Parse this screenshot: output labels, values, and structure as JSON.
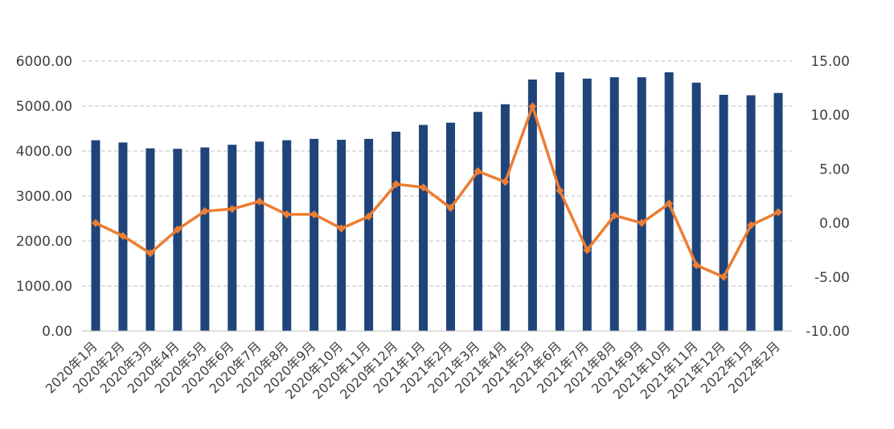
{
  "chart_data": {
    "type": "bar+line",
    "categories": [
      "2020年1月",
      "2020年2月",
      "2020年3月",
      "2020年4月",
      "2020年5月",
      "2020年6月",
      "2020年7月",
      "2020年8月",
      "2020年9月",
      "2020年10月",
      "2020年11月",
      "2020年12月",
      "2021年1月",
      "2021年2月",
      "2021年3月",
      "2021年4月",
      "2021年5月",
      "2021年6月",
      "2021年7月",
      "2021年8月",
      "2021年9月",
      "2021年10月",
      "2021年11月",
      "2021年12月",
      "2022年1月",
      "2022年2月"
    ],
    "series": [
      {
        "name": "bar",
        "axis": "left",
        "color": "#1f4479",
        "values": [
          4240,
          4190,
          4060,
          4050,
          4080,
          4140,
          4210,
          4240,
          4270,
          4250,
          4270,
          4430,
          4580,
          4630,
          4870,
          5040,
          5590,
          5750,
          5610,
          5640,
          5640,
          5750,
          5520,
          5250,
          5240,
          5290
        ]
      },
      {
        "name": "line",
        "axis": "right",
        "color": "#ed7d31",
        "values": [
          0.0,
          -1.2,
          -2.8,
          -0.6,
          1.1,
          1.3,
          2.0,
          0.8,
          0.8,
          -0.5,
          0.6,
          3.6,
          3.3,
          1.4,
          4.8,
          3.8,
          10.8,
          3.0,
          -2.5,
          0.7,
          0.0,
          1.8,
          -3.9,
          -5.0,
          -0.2,
          1.0
        ]
      }
    ],
    "y_left": {
      "min": 0,
      "max": 6000,
      "ticks": [
        "0.00",
        "1000.00",
        "2000.00",
        "3000.00",
        "4000.00",
        "5000.00",
        "6000.00"
      ]
    },
    "y_right": {
      "min": -10,
      "max": 15,
      "ticks": [
        "-10.00",
        "-5.00",
        "0.00",
        "5.00",
        "10.00",
        "15.00"
      ]
    },
    "grid": true,
    "grid_color": "#bfbfbf",
    "legend": "none",
    "title": "",
    "xlabel": "",
    "ylabel": ""
  }
}
